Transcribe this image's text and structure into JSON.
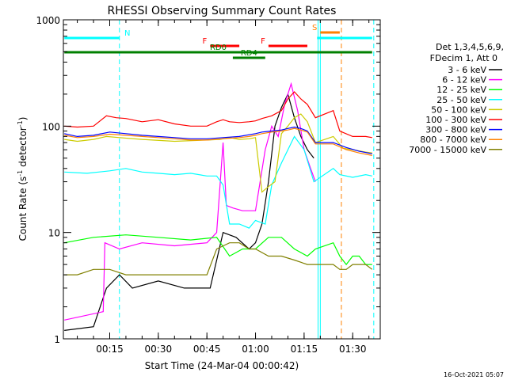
{
  "chart_data": {
    "type": "line",
    "title": "RHESSI Observing Summary Count Rates",
    "xlabel": "Start Time (24-Mar-04 00:00:42)",
    "ylabel_main": "Count Rate (s",
    "ylabel_sup1": "-1",
    "ylabel_mid": " detector",
    "ylabel_sup2": "-1",
    "ylabel_end": ")",
    "ylog": true,
    "ylim": [
      1,
      1000
    ],
    "xlim_minutes": [
      0.7,
      98.5
    ],
    "x_ticks": [
      "00:15",
      "00:30",
      "00:45",
      "01:00",
      "01:15",
      "01:30"
    ],
    "x_tick_minutes": [
      15,
      30,
      45,
      60,
      75,
      90
    ],
    "y_ticks": [
      "1",
      "10",
      "100",
      "1000"
    ],
    "y_tick_values": [
      1,
      10,
      100,
      1000
    ],
    "timestamp": "16-Oct-2021 05:07",
    "legend": {
      "header": [
        "Det 1,3,4,5,6,9,",
        "FDecim 1, Att 0"
      ],
      "placement": "right"
    },
    "series": [
      {
        "name": "3 - 6 keV",
        "color": "#000000",
        "x": [
          1,
          10,
          14,
          18,
          22,
          30,
          38,
          46,
          50,
          54,
          58,
          60,
          62,
          64,
          66,
          68,
          70,
          72,
          74,
          76,
          78,
          79
        ],
        "y": [
          1.2,
          1.3,
          3,
          4,
          3,
          3.5,
          3,
          3,
          10,
          9,
          7,
          8,
          12,
          30,
          100,
          150,
          200,
          120,
          80,
          60,
          50,
          0
        ]
      },
      {
        "name": "6 - 12 keV",
        "color": "#ff00ff",
        "x": [
          1,
          13,
          13.5,
          18,
          25,
          35,
          45,
          48,
          50,
          51,
          53,
          56,
          60,
          63,
          65,
          67,
          69,
          71,
          73,
          75,
          77,
          78.5
        ],
        "y": [
          1.5,
          1.8,
          8,
          7,
          8,
          7.5,
          8,
          10,
          70,
          18,
          17,
          16,
          16,
          60,
          100,
          80,
          160,
          250,
          140,
          60,
          40,
          30
        ]
      },
      {
        "name": "12 - 25 keV",
        "color": "#00ff00",
        "x": [
          1,
          10,
          20,
          30,
          40,
          48,
          52,
          56,
          60,
          64,
          68,
          72,
          76,
          78.5,
          84,
          86,
          88,
          90,
          92,
          94,
          96
        ],
        "y": [
          8,
          9,
          9.5,
          9,
          8.5,
          9,
          6,
          7,
          7,
          9,
          9,
          7,
          6,
          7,
          8,
          6,
          5,
          6,
          6,
          5,
          5
        ]
      },
      {
        "name": "25 - 50 keV",
        "color": "#00ffff",
        "x": [
          1,
          8,
          15,
          20,
          25,
          30,
          35,
          40,
          45,
          48,
          50,
          52,
          55,
          58,
          60,
          63,
          65,
          68,
          72,
          75,
          78,
          84,
          86,
          90,
          94,
          96
        ],
        "y": [
          37,
          36,
          38,
          40,
          37,
          36,
          35,
          36,
          34,
          34,
          28,
          12,
          12,
          11,
          13,
          12,
          28,
          45,
          80,
          60,
          30,
          40,
          35,
          33,
          35,
          34
        ]
      },
      {
        "name": "50 - 100 keV",
        "color": "#cccc00",
        "x": [
          1,
          5,
          10,
          14,
          18,
          25,
          35,
          45,
          49,
          52,
          55,
          58,
          60,
          62,
          64,
          66,
          68,
          70,
          72,
          74,
          76,
          78.5,
          84,
          87,
          90,
          94,
          96
        ],
        "y": [
          75,
          72,
          75,
          80,
          78,
          75,
          72,
          74,
          75,
          78,
          75,
          76,
          78,
          24,
          27,
          30,
          85,
          100,
          120,
          130,
          110,
          70,
          80,
          62,
          60,
          57,
          56
        ]
      },
      {
        "name": "100 - 300 keV",
        "color": "#ff0000",
        "x": [
          1,
          5,
          10,
          14,
          17,
          20,
          25,
          30,
          35,
          40,
          45,
          48,
          50,
          52,
          55,
          58,
          60,
          62,
          65,
          68,
          70,
          72,
          74,
          76,
          78.5,
          84,
          86,
          90,
          94,
          96
        ],
        "y": [
          100,
          98,
          100,
          125,
          120,
          118,
          110,
          115,
          105,
          100,
          100,
          110,
          115,
          110,
          108,
          110,
          112,
          118,
          125,
          140,
          180,
          210,
          180,
          160,
          120,
          140,
          90,
          80,
          80,
          78
        ]
      },
      {
        "name": "300 - 800 keV",
        "color": "#0000ff",
        "x": [
          1,
          5,
          10,
          15,
          20,
          25,
          30,
          35,
          40,
          45,
          50,
          55,
          58,
          60,
          62,
          65,
          68,
          70,
          72,
          74,
          76,
          78.5,
          84,
          88,
          92,
          96
        ],
        "y": [
          85,
          80,
          82,
          88,
          85,
          82,
          80,
          78,
          76,
          76,
          78,
          80,
          83,
          85,
          88,
          90,
          92,
          95,
          98,
          95,
          90,
          70,
          70,
          63,
          58,
          55
        ]
      },
      {
        "name": "800 - 7000 keV",
        "color": "#ff8000",
        "x": [
          1,
          5,
          10,
          15,
          20,
          25,
          30,
          35,
          40,
          45,
          50,
          55,
          58,
          60,
          62,
          65,
          68,
          70,
          72,
          74,
          76,
          78.5,
          84,
          88,
          92,
          96
        ],
        "y": [
          82,
          78,
          80,
          84,
          82,
          80,
          78,
          76,
          74,
          74,
          76,
          78,
          80,
          82,
          85,
          88,
          90,
          92,
          95,
          92,
          88,
          68,
          68,
          60,
          56,
          53
        ]
      },
      {
        "name": "7000 - 15000 keV",
        "color": "#808000",
        "x": [
          1,
          5,
          10,
          15,
          20,
          25,
          30,
          35,
          40,
          45,
          48,
          52,
          55,
          58,
          60,
          64,
          68,
          72,
          76,
          78.5,
          84,
          86,
          88,
          90,
          94,
          96
        ],
        "y": [
          4,
          4,
          4.5,
          4.5,
          4,
          4,
          4,
          4,
          4,
          4,
          7,
          8,
          8,
          7,
          7,
          6,
          6,
          5.5,
          5,
          5,
          5,
          4.5,
          4.5,
          5,
          5,
          4.5
        ]
      }
    ],
    "flags": [
      {
        "label": "N",
        "color": "#00ffff",
        "x1": 1,
        "x2": 18
      },
      {
        "label": "F",
        "color": "#ff0000",
        "x1": 46,
        "x2": 55
      },
      {
        "label": "F",
        "color": "#ff0000",
        "x1": 64,
        "x2": 76
      },
      {
        "label": "RD0",
        "color": "#008000",
        "x1": 1,
        "x2": 96
      },
      {
        "label": "RD4",
        "color": "#008000",
        "x1": 53,
        "x2": 63
      },
      {
        "label": "S",
        "color": "#ff8000",
        "x1": 80,
        "x2": 86
      },
      {
        "label": "",
        "color": "#00ffff",
        "x1": 79,
        "x2": 96
      }
    ],
    "vlines": [
      {
        "x": 18,
        "color": "#00ffff",
        "style": "dashed"
      },
      {
        "x": 79.3,
        "color": "#00ffff",
        "style": "solid"
      },
      {
        "x": 80,
        "color": "#00ffff",
        "style": "solid"
      },
      {
        "x": 86.5,
        "color": "#ff8000",
        "style": "dashed"
      },
      {
        "x": 96.5,
        "color": "#00ffff",
        "style": "dashed"
      }
    ]
  }
}
